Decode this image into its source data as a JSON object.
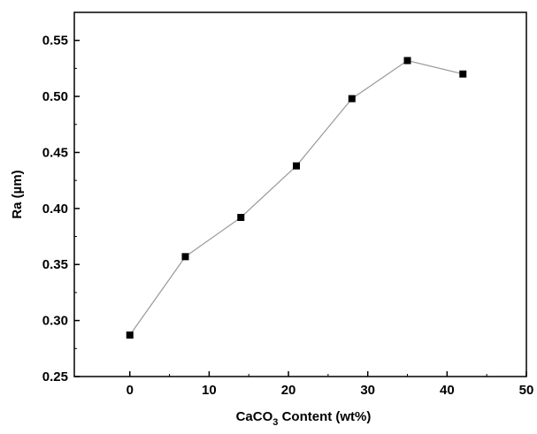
{
  "chart_data": {
    "type": "line",
    "title": "",
    "xlabel": {
      "prefix": "CaCO",
      "subscript": "3",
      "suffix": " Content (wt%)"
    },
    "ylabel": "Ra (µm)",
    "xlim": [
      -7,
      50
    ],
    "ylim": [
      0.25,
      0.575
    ],
    "x_ticks": [
      0,
      10,
      20,
      30,
      40,
      50
    ],
    "x_tick_labels": [
      "0",
      "10",
      "20",
      "30",
      "40",
      "50"
    ],
    "y_ticks": [
      0.25,
      0.3,
      0.35,
      0.4,
      0.45,
      0.5,
      0.55
    ],
    "y_tick_labels": [
      "0.25",
      "0.30",
      "0.35",
      "0.40",
      "0.45",
      "0.50",
      "0.55"
    ],
    "grid": false,
    "legend": "none",
    "series": [
      {
        "x": [
          0,
          7,
          14,
          21,
          28,
          35,
          42
        ],
        "y": [
          0.287,
          0.357,
          0.392,
          0.438,
          0.498,
          0.532,
          0.52
        ],
        "marker": "square",
        "marker_color": "#000000",
        "line_color": "#9a9a9a"
      }
    ]
  }
}
